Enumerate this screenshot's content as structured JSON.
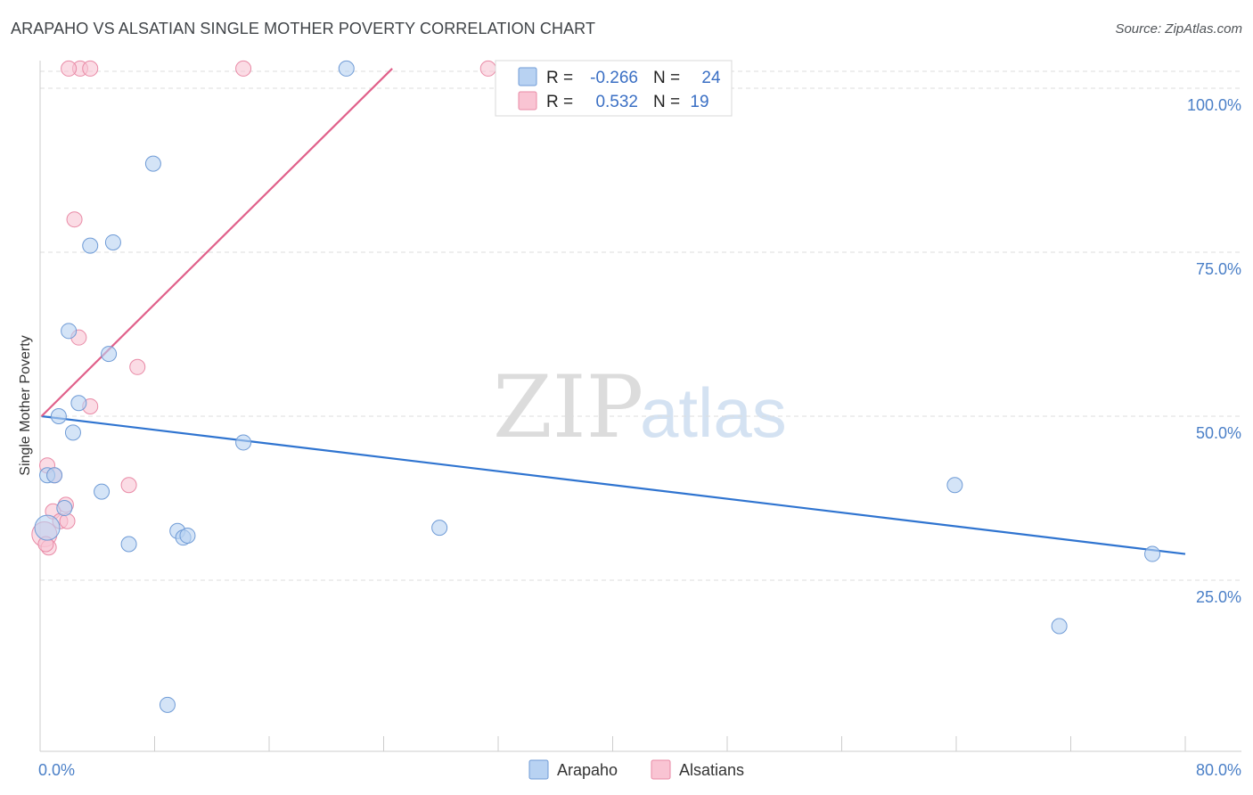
{
  "header": {
    "title": "ARAPAHO VS ALSATIAN SINGLE MOTHER POVERTY CORRELATION CHART",
    "source": "Source: ZipAtlas.com"
  },
  "watermark": {
    "zip": "ZIP",
    "atlas": "atlas"
  },
  "colors": {
    "arapaho_fill": "#b8d2f2",
    "arapaho_stroke": "#6f9bd6",
    "arapaho_line": "#2f74d0",
    "alsatian_fill": "#f9c4d3",
    "alsatian_stroke": "#e98aa6",
    "alsatian_line": "#e0608a",
    "grid": "#dddddd",
    "tick_text": "#4a7fc7"
  },
  "legend": {
    "rows": [
      {
        "r_label": "R = ",
        "r_value": "-0.266",
        "n_label": "N = ",
        "n_value": "24"
      },
      {
        "r_label": "R = ",
        "r_value": "0.532",
        "n_label": "N = ",
        "n_value": "19"
      }
    ]
  },
  "chart_data": {
    "type": "scatter",
    "title": "ARAPAHO VS ALSATIAN SINGLE MOTHER POVERTY CORRELATION CHART",
    "xlabel": "",
    "ylabel": "Single Mother Poverty",
    "xlim": [
      0,
      80
    ],
    "ylim": [
      0,
      105
    ],
    "x_tick_labels": [
      "0.0%",
      "80.0%"
    ],
    "y_ticks": [
      25,
      50,
      75,
      100
    ],
    "y_tick_labels": [
      "25.0%",
      "50.0%",
      "75.0%",
      "100.0%"
    ],
    "grid": true,
    "legend_position": "top-center",
    "series": [
      {
        "name": "Arapaho",
        "points": [
          {
            "x": 0.5,
            "y": 33.0,
            "big": true
          },
          {
            "x": 0.5,
            "y": 41.0
          },
          {
            "x": 1.0,
            "y": 41.0
          },
          {
            "x": 1.3,
            "y": 50.0
          },
          {
            "x": 1.7,
            "y": 36.0
          },
          {
            "x": 2.0,
            "y": 63.0
          },
          {
            "x": 2.3,
            "y": 47.5
          },
          {
            "x": 2.7,
            "y": 52.0
          },
          {
            "x": 3.5,
            "y": 76.0
          },
          {
            "x": 4.3,
            "y": 38.5
          },
          {
            "x": 4.8,
            "y": 59.5
          },
          {
            "x": 5.1,
            "y": 76.5
          },
          {
            "x": 6.2,
            "y": 30.5
          },
          {
            "x": 7.9,
            "y": 88.5
          },
          {
            "x": 8.9,
            "y": 6.0
          },
          {
            "x": 9.6,
            "y": 32.5
          },
          {
            "x": 10.0,
            "y": 31.5
          },
          {
            "x": 10.3,
            "y": 31.8
          },
          {
            "x": 14.2,
            "y": 46.0
          },
          {
            "x": 21.4,
            "y": 103.0
          },
          {
            "x": 27.9,
            "y": 33.0
          },
          {
            "x": 63.9,
            "y": 39.5
          },
          {
            "x": 71.2,
            "y": 18.0
          },
          {
            "x": 77.7,
            "y": 29.0
          }
        ],
        "trend": {
          "x": [
            0.1,
            80.0
          ],
          "y": [
            50.0,
            29.0
          ]
        }
      },
      {
        "name": "Alsatians",
        "points": [
          {
            "x": 0.3,
            "y": 32.0,
            "big": true
          },
          {
            "x": 0.5,
            "y": 42.5
          },
          {
            "x": 0.6,
            "y": 30.0
          },
          {
            "x": 0.9,
            "y": 35.5
          },
          {
            "x": 1.0,
            "y": 41.0
          },
          {
            "x": 1.4,
            "y": 34.0
          },
          {
            "x": 1.8,
            "y": 36.5
          },
          {
            "x": 1.9,
            "y": 34.0
          },
          {
            "x": 2.4,
            "y": 80.0
          },
          {
            "x": 2.8,
            "y": 103.0
          },
          {
            "x": 2.0,
            "y": 103.0
          },
          {
            "x": 2.7,
            "y": 62.0
          },
          {
            "x": 3.5,
            "y": 103.0
          },
          {
            "x": 3.5,
            "y": 51.5
          },
          {
            "x": 6.2,
            "y": 39.5
          },
          {
            "x": 6.8,
            "y": 57.5
          },
          {
            "x": 14.2,
            "y": 103.0
          },
          {
            "x": 31.3,
            "y": 103.0
          },
          {
            "x": 0.4,
            "y": 30.5
          }
        ],
        "trend": {
          "x": [
            0.1,
            24.6
          ],
          "y": [
            50.0,
            103.0
          ]
        }
      }
    ]
  }
}
